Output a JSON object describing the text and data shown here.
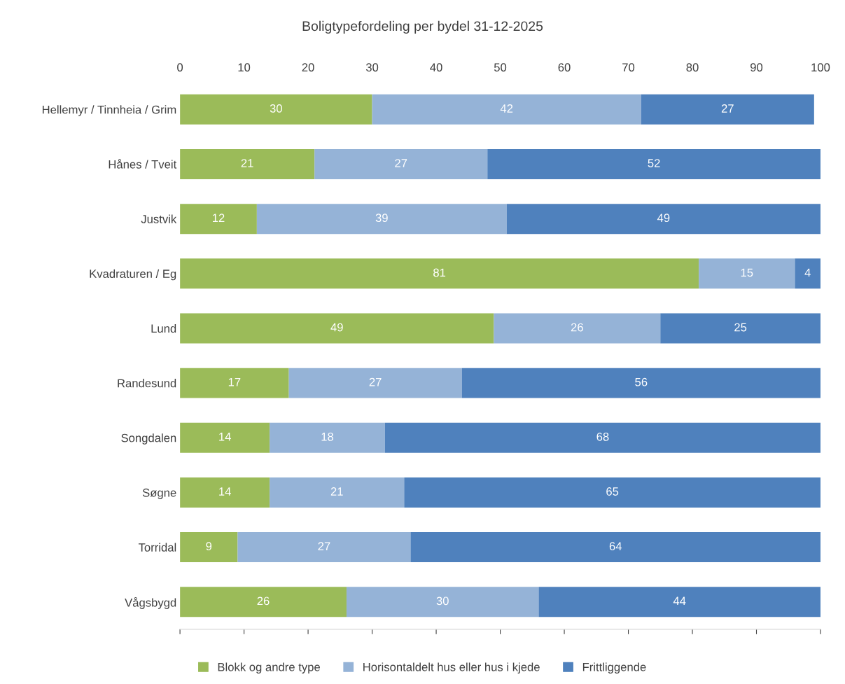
{
  "chart_data": {
    "type": "bar",
    "orientation": "horizontal",
    "stacked": true,
    "title": "Boligtypefordeling per bydel 31-12-2025",
    "categories": [
      "Hellemyr / Tinnheia / Grim",
      "Hånes / Tveit",
      "Justvik",
      "Kvadraturen / Eg",
      "Lund",
      "Randesund",
      "Songdalen",
      "Søgne",
      "Torridal",
      "Vågsbygd"
    ],
    "series": [
      {
        "name": "Blokk og andre type",
        "color": "#9bbb59",
        "values": [
          30,
          21,
          12,
          81,
          49,
          17,
          14,
          14,
          9,
          26
        ]
      },
      {
        "name": "Horisontaldelt hus eller hus i kjede",
        "color": "#95b3d7",
        "values": [
          42,
          27,
          39,
          15,
          26,
          27,
          18,
          21,
          27,
          30
        ]
      },
      {
        "name": "Frittliggende",
        "color": "#4f81bd",
        "values": [
          27,
          52,
          49,
          4,
          25,
          56,
          68,
          65,
          64,
          44
        ]
      }
    ],
    "xlim": [
      0,
      100
    ],
    "xticks": [
      0,
      10,
      20,
      30,
      40,
      50,
      60,
      70,
      80,
      90,
      100
    ],
    "data_labels": true,
    "grid": false,
    "legend": "bottom"
  }
}
